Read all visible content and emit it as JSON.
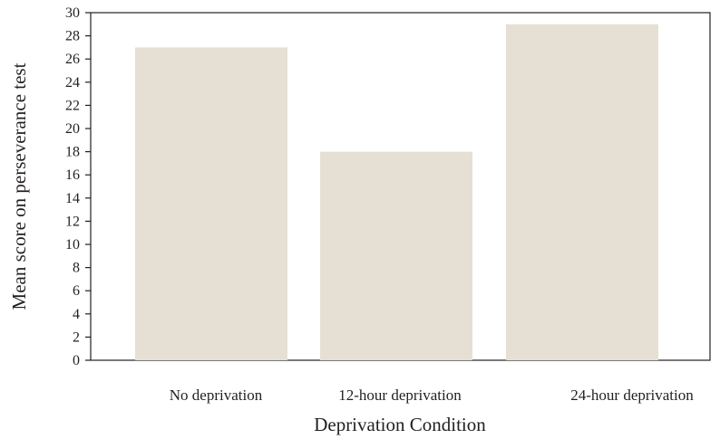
{
  "chart_data": {
    "type": "bar",
    "categories": [
      "No deprivation",
      "12-hour deprivation",
      "24-hour deprivation"
    ],
    "values": [
      27,
      18,
      29
    ],
    "xlabel": "Deprivation Condition",
    "ylabel": "Mean score on perseverance test",
    "ylim": [
      0,
      30
    ],
    "yticks": [
      0,
      2,
      4,
      6,
      8,
      10,
      12,
      14,
      16,
      18,
      20,
      22,
      24,
      26,
      28,
      30
    ],
    "grid": false,
    "bar_color": "#e6dfd3"
  }
}
